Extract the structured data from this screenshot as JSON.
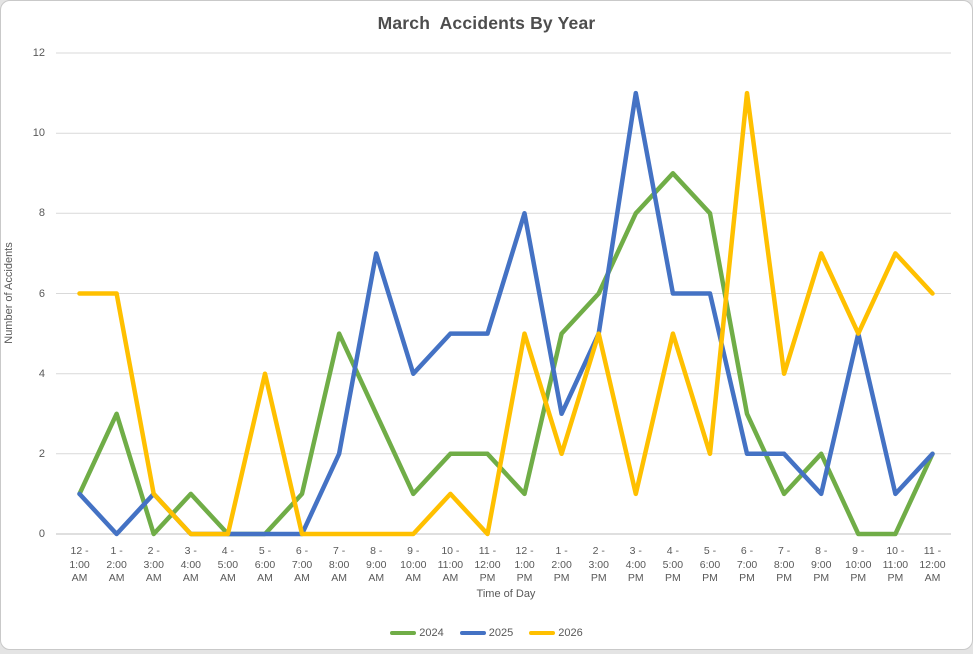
{
  "chart_data": {
    "type": "line",
    "title": "March  Accidents By Year",
    "xlabel": "Time of Day",
    "ylabel": "Number of Accidents",
    "ylim": [
      0,
      12
    ],
    "yticks": [
      0,
      2,
      4,
      6,
      8,
      10,
      12
    ],
    "grid": true,
    "legend_position": "bottom",
    "categories": [
      [
        "12 -",
        "1:00",
        "AM"
      ],
      [
        "1 -",
        "2:00",
        "AM"
      ],
      [
        "2 -",
        "3:00",
        "AM"
      ],
      [
        "3 -",
        "4:00",
        "AM"
      ],
      [
        "4 -",
        "5:00",
        "AM"
      ],
      [
        "5 -",
        "6:00",
        "AM"
      ],
      [
        "6 -",
        "7:00",
        "AM"
      ],
      [
        "7 -",
        "8:00",
        "AM"
      ],
      [
        "8 -",
        "9:00",
        "AM"
      ],
      [
        "9 -",
        "10:00",
        "AM"
      ],
      [
        "10 -",
        "11:00",
        "AM"
      ],
      [
        "11 -",
        "12:00",
        "PM"
      ],
      [
        "12 -",
        "1:00",
        "PM"
      ],
      [
        "1 -",
        "2:00",
        "PM"
      ],
      [
        "2 -",
        "3:00",
        "PM"
      ],
      [
        "3 -",
        "4:00",
        "PM"
      ],
      [
        "4 -",
        "5:00",
        "PM"
      ],
      [
        "5 -",
        "6:00",
        "PM"
      ],
      [
        "6 -",
        "7:00",
        "PM"
      ],
      [
        "7 -",
        "8:00",
        "PM"
      ],
      [
        "8 -",
        "9:00",
        "PM"
      ],
      [
        "9 -",
        "10:00",
        "PM"
      ],
      [
        "10 -",
        "11:00",
        "PM"
      ],
      [
        "11 -",
        "12:00",
        "AM"
      ]
    ],
    "series": [
      {
        "name": "2024",
        "color": "#70AD47",
        "values": [
          1,
          3,
          0,
          1,
          0,
          0,
          1,
          5,
          3,
          1,
          2,
          2,
          1,
          5,
          6,
          8,
          9,
          8,
          3,
          1,
          2,
          0,
          0,
          2
        ]
      },
      {
        "name": "2025",
        "color": "#4472C4",
        "values": [
          1,
          0,
          1,
          0,
          0,
          0,
          0,
          2,
          7,
          4,
          5,
          5,
          8,
          3,
          5,
          11,
          6,
          6,
          2,
          2,
          1,
          5,
          1,
          2
        ]
      },
      {
        "name": "2026",
        "color": "#FFC000",
        "values": [
          6,
          6,
          1,
          0,
          0,
          4,
          0,
          0,
          0,
          0,
          1,
          0,
          5,
          2,
          5,
          1,
          5,
          2,
          11,
          4,
          7,
          5,
          7,
          6
        ]
      }
    ],
    "gridline_color": "#d9d9d9",
    "axis_line_color": "#bfbfbf"
  }
}
